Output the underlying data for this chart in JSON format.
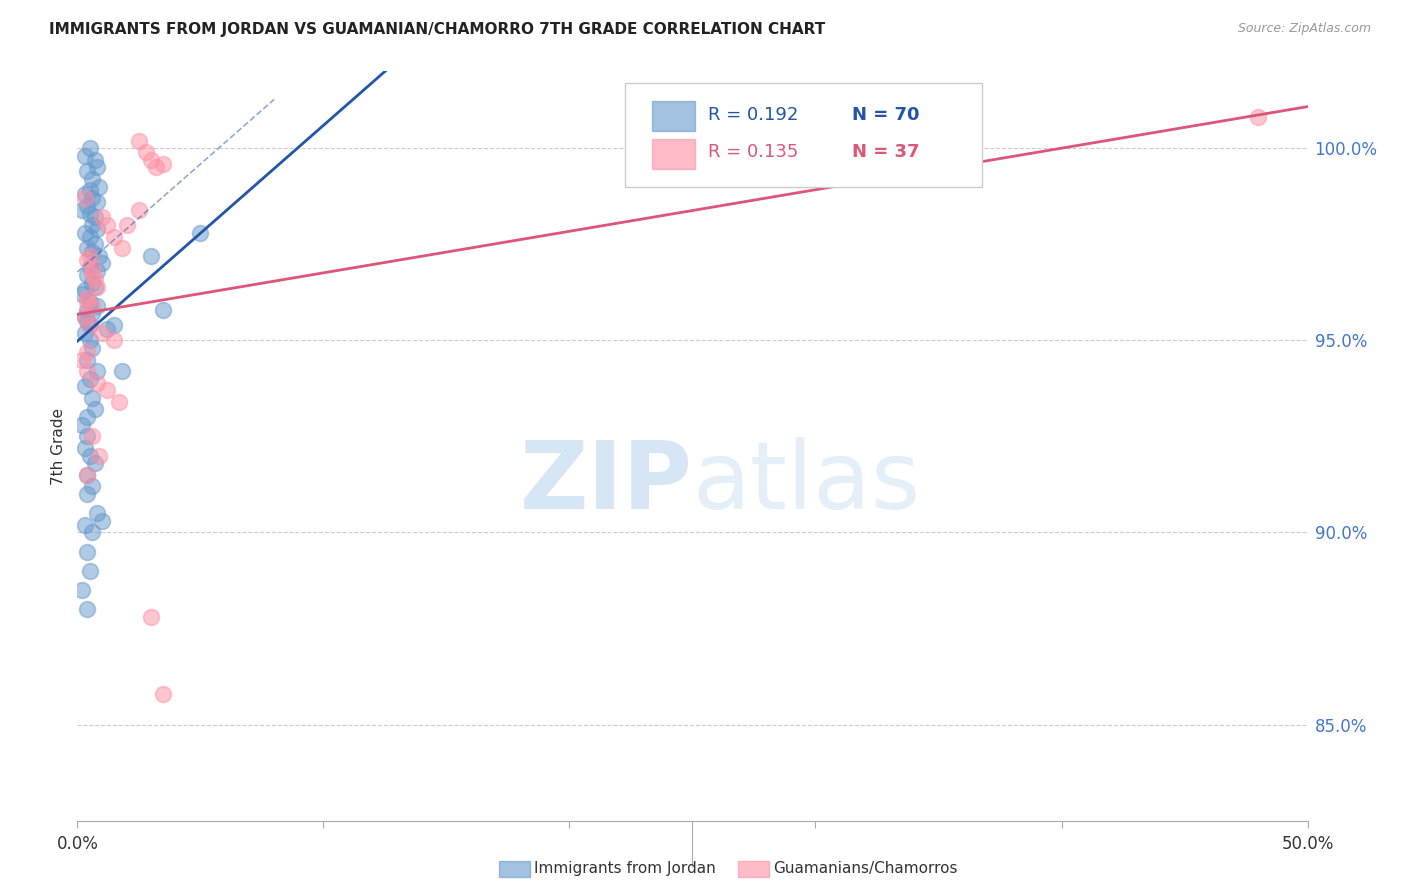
{
  "title": "IMMIGRANTS FROM JORDAN VS GUAMANIAN/CHAMORRO 7TH GRADE CORRELATION CHART",
  "source": "Source: ZipAtlas.com",
  "ylabel": "7th Grade",
  "yticks": [
    85.0,
    90.0,
    95.0,
    100.0
  ],
  "ytick_labels": [
    "85.0%",
    "90.0%",
    "95.0%",
    "100.0%"
  ],
  "xlim": [
    0.0,
    50.0
  ],
  "ylim": [
    82.5,
    102.0
  ],
  "legend_blue_r": "R = 0.192",
  "legend_blue_n": "N = 70",
  "legend_pink_r": "R = 0.135",
  "legend_pink_n": "N = 37",
  "legend_label_blue": "Immigrants from Jordan",
  "legend_label_pink": "Guamanians/Chamorros",
  "blue_color": "#6699CC",
  "pink_color": "#FF8FA3",
  "trendline_blue_color": "#2255AA",
  "trendline_pink_color": "#DD5577",
  "blue_scatter_x": [
    0.5,
    0.3,
    0.7,
    0.8,
    0.4,
    0.6,
    0.9,
    0.5,
    0.3,
    0.6,
    0.8,
    0.4,
    0.2,
    0.5,
    0.7,
    0.6,
    0.8,
    0.3,
    0.5,
    0.7,
    0.4,
    0.6,
    0.9,
    1.0,
    0.5,
    0.8,
    0.4,
    0.6,
    0.7,
    0.3,
    0.2,
    0.5,
    0.8,
    0.4,
    0.6,
    0.3,
    0.4,
    0.5,
    1.2,
    0.3,
    0.5,
    0.6,
    1.5,
    0.4,
    0.8,
    0.5,
    0.3,
    0.6,
    0.7,
    0.4,
    0.2,
    0.4,
    5.0,
    0.3,
    0.5,
    0.7,
    0.4,
    0.6,
    3.0,
    0.4,
    0.8,
    0.3,
    0.6,
    0.4,
    0.5,
    3.5,
    0.2,
    0.4,
    1.8,
    1.0
  ],
  "blue_scatter_y": [
    100.0,
    99.8,
    99.7,
    99.5,
    99.4,
    99.2,
    99.0,
    98.9,
    98.8,
    98.7,
    98.6,
    98.5,
    98.4,
    98.3,
    98.2,
    98.0,
    97.9,
    97.8,
    97.7,
    97.5,
    97.4,
    97.3,
    97.2,
    97.0,
    96.9,
    96.8,
    96.7,
    96.5,
    96.4,
    96.3,
    96.2,
    96.0,
    95.9,
    95.8,
    95.7,
    95.6,
    95.5,
    95.4,
    95.3,
    95.2,
    95.0,
    94.8,
    95.4,
    94.5,
    94.2,
    94.0,
    93.8,
    93.5,
    93.2,
    93.0,
    92.8,
    92.5,
    97.8,
    92.2,
    92.0,
    91.8,
    91.5,
    91.2,
    97.2,
    91.0,
    90.5,
    90.2,
    90.0,
    89.5,
    89.0,
    95.8,
    88.5,
    88.0,
    94.2,
    90.3
  ],
  "pink_scatter_x": [
    2.5,
    2.8,
    3.0,
    3.2,
    3.5,
    1.0,
    1.2,
    1.5,
    1.8,
    0.4,
    0.6,
    0.7,
    0.8,
    0.4,
    0.6,
    0.3,
    0.5,
    1.0,
    1.5,
    0.4,
    0.2,
    0.4,
    0.8,
    1.2,
    1.7,
    2.0,
    2.5,
    0.6,
    0.9,
    0.4,
    48.0,
    3.0,
    3.5,
    0.3,
    0.5,
    0.6,
    0.4
  ],
  "pink_scatter_y": [
    100.2,
    99.9,
    99.7,
    99.5,
    99.6,
    98.2,
    98.0,
    97.7,
    97.4,
    97.1,
    96.9,
    96.6,
    96.4,
    96.1,
    95.9,
    95.6,
    95.4,
    95.2,
    95.0,
    94.7,
    94.5,
    94.2,
    93.9,
    93.7,
    93.4,
    98.0,
    98.4,
    92.5,
    92.0,
    91.5,
    100.8,
    87.8,
    85.8,
    98.7,
    97.2,
    96.7,
    96.0
  ],
  "watermark_zip": "ZIP",
  "watermark_atlas": "atlas",
  "background_color": "#FFFFFF",
  "grid_color": "#CCCCCC",
  "ytick_color": "#4477CC",
  "xtick_labels": [
    "0.0%",
    "",
    "",
    "",
    "",
    "50.0%"
  ],
  "xtick_positions": [
    0,
    10,
    20,
    30,
    40,
    50
  ]
}
